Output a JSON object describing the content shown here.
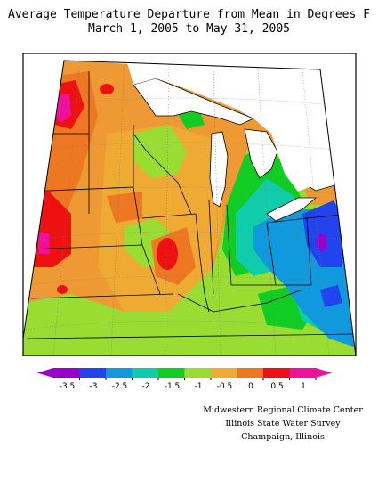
{
  "title": {
    "line1": "Average Temperature Departure from Mean in Degrees F",
    "line2": "March 1, 2005 to May 31, 2005"
  },
  "legend": {
    "tick_labels": [
      "-3.5",
      "-3",
      "-2.5",
      "-2",
      "-1.5",
      "-1",
      "-0.5",
      "0",
      "0.5",
      "1"
    ],
    "colors": [
      "#9900cc",
      "#2244ee",
      "#1199dd",
      "#11ccaa",
      "#11cc22",
      "#99dd33",
      "#eeaa33",
      "#ee7722",
      "#ee1111",
      "#ee1199"
    ]
  },
  "map": {
    "region": "Midwestern United States",
    "palette": {
      "water": "#ffffff",
      "orange": "#ee9933",
      "orange_dark": "#ee7722",
      "red": "#ee1111",
      "magenta": "#ee1199",
      "yellow": "#eeaa33",
      "lightgreen": "#99dd33",
      "green": "#11cc22",
      "teal": "#11ccaa",
      "cyan": "#1199dd",
      "blue": "#2244ee",
      "purple": "#9900cc"
    }
  },
  "credits": {
    "line1": "Midwestern Regional Climate Center",
    "line2": "Illinois State Water Survey",
    "line3": "Champaign, Illinois"
  }
}
